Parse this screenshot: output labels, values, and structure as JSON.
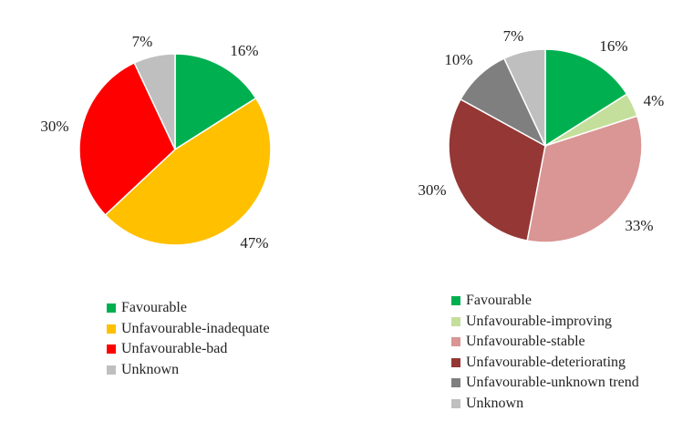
{
  "chart_data": [
    {
      "type": "pie",
      "categories": [
        "Favourable",
        "Unfavourable-inadequate",
        "Unfavourable-bad",
        "Unknown"
      ],
      "values": [
        16,
        47,
        30,
        7
      ],
      "labels": [
        "16%",
        "47%",
        "30%",
        "7%"
      ],
      "colors": [
        "#00b050",
        "#ffc000",
        "#ff0000",
        "#bfbfbf"
      ],
      "legend": "bottom"
    },
    {
      "type": "pie",
      "categories": [
        "Favourable",
        "Unfavourable-improving",
        "Unfavourable-stable",
        "Unfavourable-deteriorating",
        "Unfavourable-unknown trend",
        "Unknown"
      ],
      "values": [
        16,
        4,
        33,
        30,
        10,
        7
      ],
      "labels": [
        "16%",
        "4%",
        "33%",
        "30%",
        "10%",
        "7%"
      ],
      "colors": [
        "#00b050",
        "#c4df9b",
        "#d99694",
        "#953735",
        "#7f7f7f",
        "#bfbfbf"
      ],
      "legend": "bottom"
    }
  ]
}
